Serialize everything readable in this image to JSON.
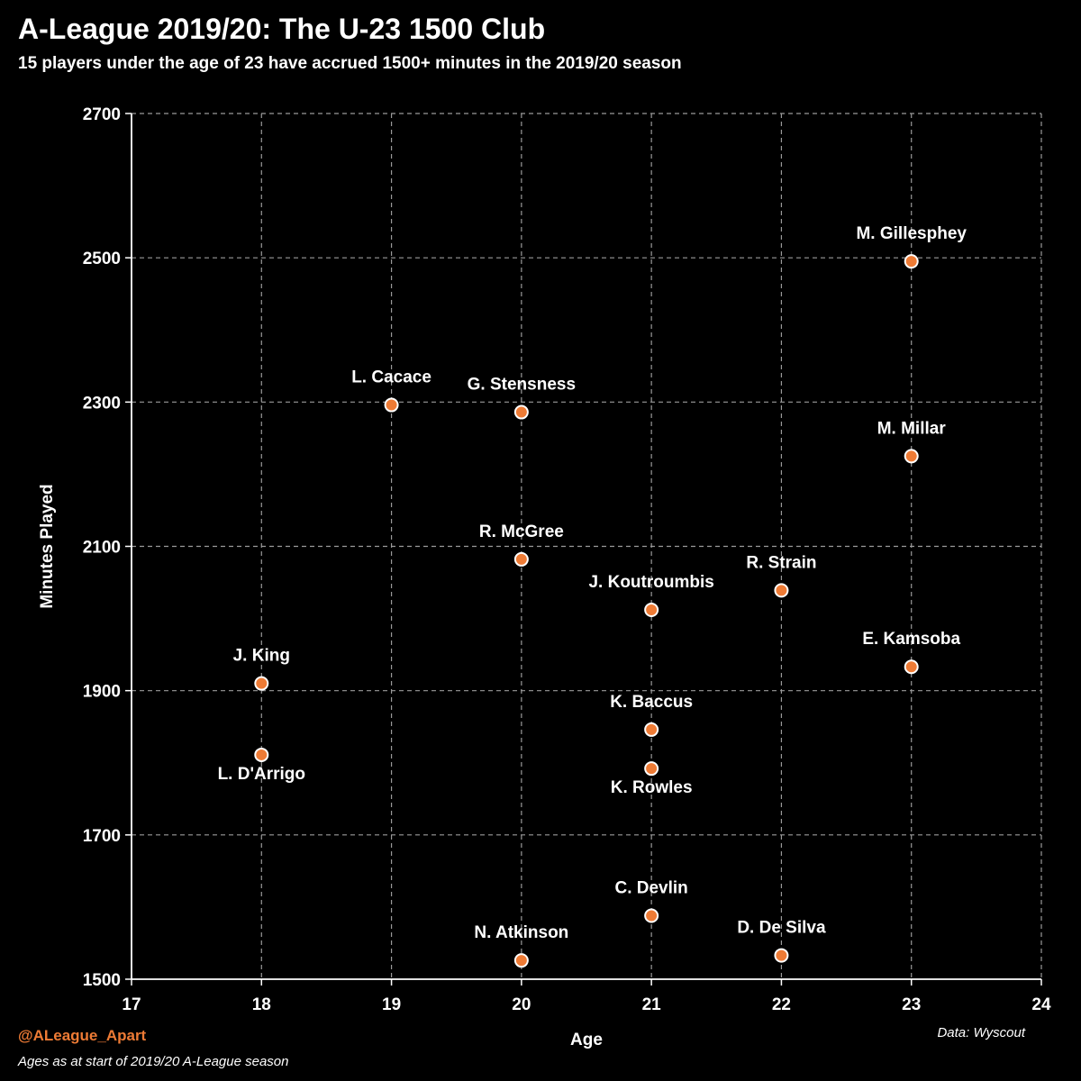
{
  "chart_data": {
    "type": "scatter",
    "title": "A-League 2019/20: The U-23 1500 Club",
    "subtitle": "15 players under the age of 23 have accrued 1500+ minutes in the 2019/20 season",
    "xlabel": "Age",
    "ylabel": "Minutes Played",
    "xlim": [
      17,
      24
    ],
    "ylim": [
      1500,
      2700
    ],
    "xticks": [
      "17",
      "18",
      "19",
      "20",
      "21",
      "22",
      "23",
      "24"
    ],
    "yticks": [
      "1500",
      "1700",
      "1900",
      "2100",
      "2300",
      "2500",
      "2700"
    ],
    "grid": true,
    "point_color": "#ee7b35",
    "points": [
      {
        "name": "M. Gillesphey",
        "x": 23,
        "y": 2495,
        "label_pos": "above"
      },
      {
        "name": "L. Cacace",
        "x": 19,
        "y": 2296,
        "label_pos": "above"
      },
      {
        "name": "G. Stensness",
        "x": 20,
        "y": 2286,
        "label_pos": "above"
      },
      {
        "name": "M. Millar",
        "x": 23,
        "y": 2225,
        "label_pos": "above"
      },
      {
        "name": "R. McGree",
        "x": 20,
        "y": 2082,
        "label_pos": "above"
      },
      {
        "name": "R. Strain",
        "x": 22,
        "y": 2039,
        "label_pos": "above"
      },
      {
        "name": "J. Koutroumbis",
        "x": 21,
        "y": 2012,
        "label_pos": "above"
      },
      {
        "name": "E. Kamsoba",
        "x": 23,
        "y": 1933,
        "label_pos": "above"
      },
      {
        "name": "J. King",
        "x": 18,
        "y": 1910,
        "label_pos": "above"
      },
      {
        "name": "K. Baccus",
        "x": 21,
        "y": 1846,
        "label_pos": "above"
      },
      {
        "name": "L. D'Arrigo",
        "x": 18,
        "y": 1811,
        "label_pos": "below"
      },
      {
        "name": "K. Rowles",
        "x": 21,
        "y": 1792,
        "label_pos": "below"
      },
      {
        "name": "C. Devlin",
        "x": 21,
        "y": 1588,
        "label_pos": "above"
      },
      {
        "name": "D. De Silva",
        "x": 22,
        "y": 1533,
        "label_pos": "above"
      },
      {
        "name": "N. Atkinson",
        "x": 20,
        "y": 1526,
        "label_pos": "above"
      }
    ]
  },
  "footer": {
    "handle": "@ALeague_Apart",
    "handle_color": "#ee7b35",
    "note": "Ages as at start of 2019/20 A-League season",
    "source": "Data: Wyscout"
  }
}
